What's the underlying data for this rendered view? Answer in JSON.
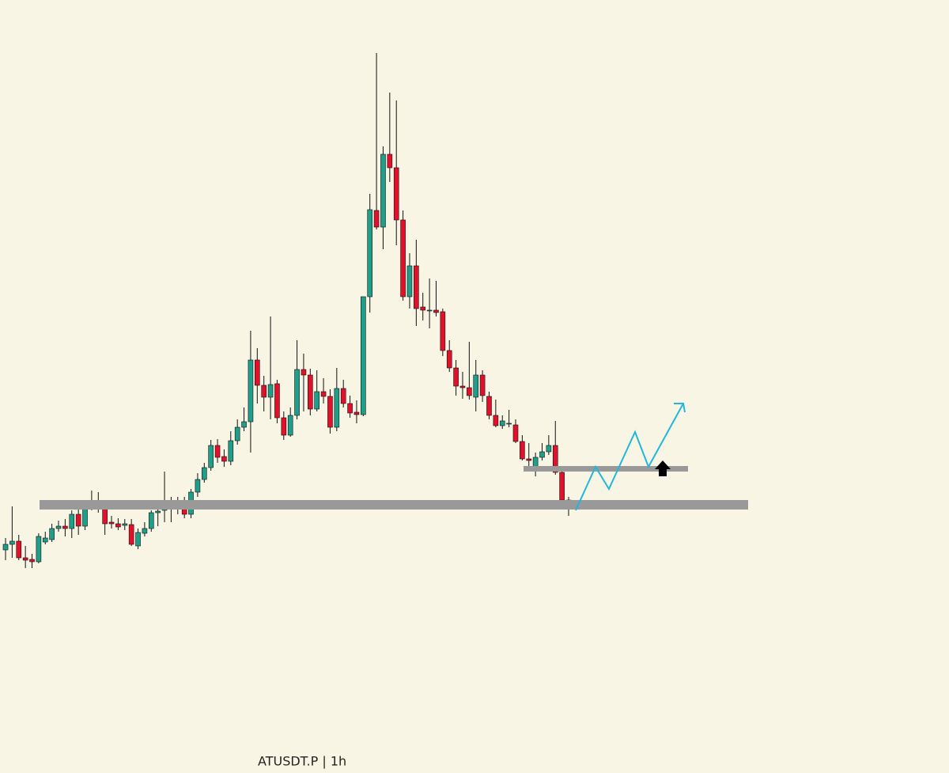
{
  "chart_data": {
    "type": "candlestick",
    "title": "ATUSDT.P | 1h",
    "up_color": "#1f9e89",
    "down_color": "#e3102b",
    "wick_color": "#111111",
    "ylim": [
      0,
      977
    ],
    "open": [
      282,
      289,
      293,
      272,
      270,
      267,
      292,
      295,
      309,
      312,
      309,
      327,
      312,
      337,
      344,
      339,
      317,
      315,
      313,
      314,
      287,
      303,
      309,
      329,
      332,
      344,
      337,
      341,
      327,
      355,
      371,
      386,
      414,
      400,
      394,
      420,
      437,
      444,
      522,
      490,
      475,
      492,
      449,
      427,
      452,
      510,
      503,
      460,
      482,
      476,
      437,
      486,
      467,
      456,
      453,
      602,
      711,
      690,
      782,
      765,
      699,
      602,
      641,
      589,
      585,
      585,
      583,
      534,
      512,
      489,
      487,
      475,
      503,
      476,
      452,
      439,
      442,
      440,
      419,
      397,
      385,
      399,
      406,
      414,
      380,
      345
    ],
    "high": [
      297,
      337,
      301,
      287,
      277,
      303,
      305,
      315,
      319,
      321,
      332,
      337,
      342,
      357,
      355,
      345,
      325,
      322,
      321,
      321,
      309,
      317,
      332,
      337,
      381,
      349,
      349,
      349,
      359,
      379,
      392,
      421,
      422,
      409,
      432,
      447,
      462,
      559,
      537,
      502,
      577,
      497,
      457,
      462,
      547,
      530,
      511,
      509,
      499,
      485,
      512,
      497,
      477,
      471,
      602,
      732,
      910,
      792,
      860,
      850,
      711,
      657,
      674,
      607,
      625,
      622,
      587,
      547,
      522,
      507,
      545,
      522,
      509,
      482,
      472,
      452,
      459,
      447,
      427,
      417,
      405,
      417,
      427,
      445,
      387,
      349
    ],
    "low": [
      269,
      272,
      269,
      259,
      259,
      265,
      289,
      292,
      305,
      299,
      297,
      301,
      307,
      332,
      329,
      301,
      309,
      307,
      307,
      287,
      283,
      299,
      305,
      312,
      317,
      317,
      327,
      322,
      322,
      349,
      367,
      382,
      392,
      387,
      389,
      415,
      432,
      405,
      467,
      457,
      447,
      442,
      421,
      425,
      447,
      457,
      452,
      457,
      467,
      429,
      432,
      462,
      449,
      442,
      451,
      582,
      687,
      662,
      747,
      667,
      597,
      587,
      565,
      572,
      562,
      577,
      527,
      507,
      477,
      473,
      472,
      457,
      469,
      447,
      437,
      435,
      437,
      417,
      395,
      381,
      375,
      395,
      402,
      377,
      342,
      325
    ],
    "close": [
      289,
      293,
      272,
      269,
      267,
      299,
      297,
      309,
      312,
      309,
      327,
      312,
      335,
      344,
      339,
      315,
      315,
      311,
      315,
      289,
      304,
      309,
      329,
      331,
      344,
      337,
      342,
      327,
      355,
      371,
      386,
      414,
      399,
      394,
      420,
      437,
      444,
      522,
      490,
      475,
      491,
      449,
      427,
      452,
      510,
      503,
      460,
      482,
      476,
      437,
      486,
      467,
      455,
      453,
      602,
      712,
      690,
      782,
      765,
      699,
      602,
      641,
      587,
      585,
      585,
      582,
      534,
      512,
      489,
      487,
      477,
      503,
      477,
      452,
      439,
      445,
      442,
      419,
      397,
      395,
      399,
      406,
      414,
      380,
      345,
      334
    ]
  }
}
